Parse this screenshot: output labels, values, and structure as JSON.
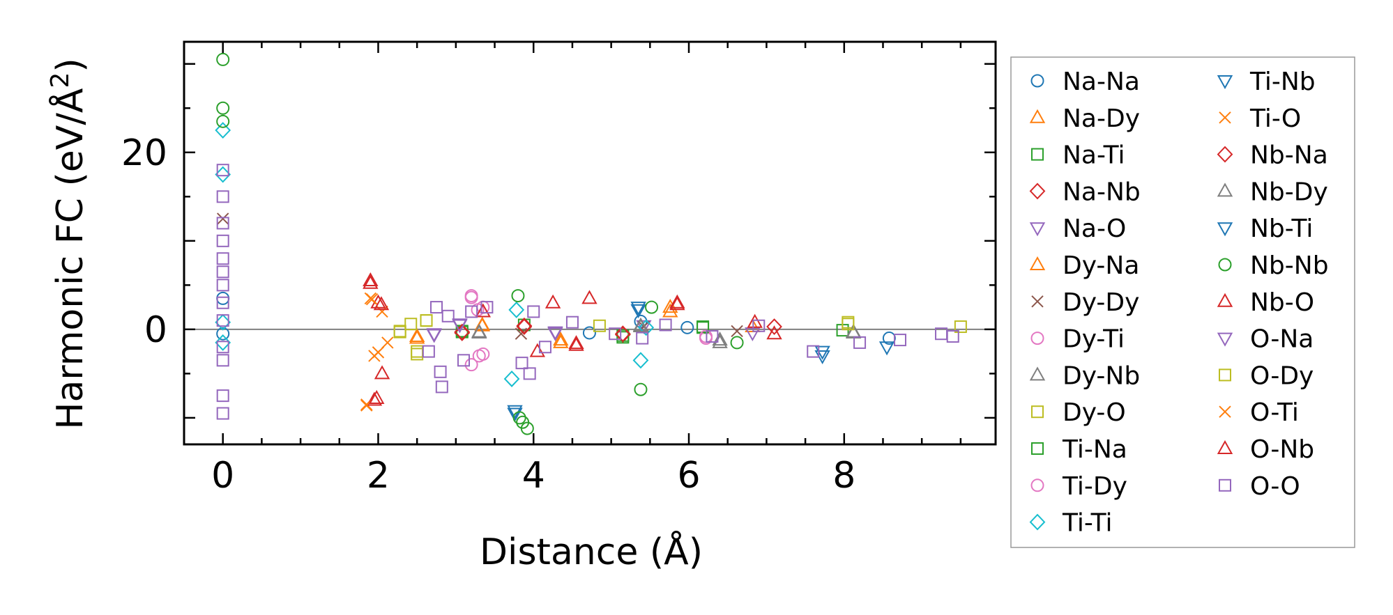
{
  "chart_data": {
    "type": "scatter",
    "xlabel": "Distance (Å)",
    "ylabel": "Harmonic FC (eV/Å",
    "ylabel_superscript": "2",
    "ylabel_close": ")",
    "xlim": [
      -0.5,
      9.95
    ],
    "ylim": [
      -13,
      32.5
    ],
    "xticks": [
      0,
      2,
      4,
      6,
      8
    ],
    "xtick_labels": [
      "0",
      "2",
      "4",
      "6",
      "8"
    ],
    "yticks": [
      0,
      20
    ],
    "ytick_labels": [
      "0",
      "20"
    ],
    "zero_line": true,
    "legend_position": "right",
    "series": [
      {
        "name": "Na-Na",
        "marker": "circle",
        "color": "#1f77b4",
        "points": [
          [
            0,
            -0.5
          ],
          [
            0,
            3.5
          ],
          [
            4.72,
            -0.4
          ],
          [
            5.38,
            0.9
          ],
          [
            5.98,
            0.2
          ],
          [
            8.58,
            -1.0
          ]
        ]
      },
      {
        "name": "Na-Dy",
        "marker": "triangle-up",
        "color": "#ff7f0e",
        "points": [
          [
            2.5,
            -1.0
          ],
          [
            3.34,
            0.5
          ],
          [
            4.35,
            -1.5
          ],
          [
            5.76,
            2.5
          ],
          [
            6.82,
            0.3
          ]
        ]
      },
      {
        "name": "Na-Ti",
        "marker": "square",
        "color": "#2ca02c",
        "points": [
          [
            3.08,
            -0.3
          ],
          [
            3.88,
            0.5
          ],
          [
            5.15,
            -0.9
          ],
          [
            6.18,
            0.2
          ],
          [
            7.98,
            -0.1
          ]
        ]
      },
      {
        "name": "Na-Nb",
        "marker": "diamond",
        "color": "#d62728",
        "points": [
          [
            3.08,
            -0.4
          ],
          [
            3.88,
            0.4
          ],
          [
            5.15,
            -0.6
          ],
          [
            7.1,
            0.3
          ]
        ]
      },
      {
        "name": "Na-O",
        "marker": "triangle-down",
        "color": "#9467bd",
        "points": [
          [
            2.72,
            -0.6
          ],
          [
            3.05,
            0.6
          ],
          [
            4.28,
            -0.3
          ],
          [
            5.42,
            0.4
          ],
          [
            6.82,
            -0.4
          ]
        ]
      },
      {
        "name": "Dy-Na",
        "marker": "triangle-up",
        "color": "#ff7f0e",
        "points": [
          [
            2.5,
            -0.8
          ],
          [
            3.34,
            0.4
          ],
          [
            4.35,
            -1.2
          ],
          [
            5.76,
            2.0
          ]
        ]
      },
      {
        "name": "Dy-Dy",
        "marker": "x",
        "color": "#8c564b",
        "points": [
          [
            0,
            12.5
          ],
          [
            3.84,
            -0.5
          ],
          [
            5.42,
            0.3
          ],
          [
            6.62,
            -0.2
          ]
        ]
      },
      {
        "name": "Dy-Ti",
        "marker": "circle",
        "color": "#e377c2",
        "points": [
          [
            3.2,
            3.8
          ],
          [
            3.3,
            -3.0
          ],
          [
            3.35,
            2.5
          ],
          [
            3.2,
            -4.0
          ],
          [
            6.22,
            -1.0
          ]
        ]
      },
      {
        "name": "Dy-Nb",
        "marker": "triangle-up",
        "color": "#7f7f7f",
        "points": [
          [
            3.3,
            -0.4
          ],
          [
            5.38,
            0.4
          ],
          [
            6.4,
            -1.2
          ],
          [
            8.12,
            -0.3
          ]
        ]
      },
      {
        "name": "Dy-O",
        "marker": "square",
        "color": "#bcbd22",
        "points": [
          [
            2.28,
            -0.3
          ],
          [
            2.42,
            0.6
          ],
          [
            2.5,
            -2.5
          ],
          [
            2.62,
            1.0
          ],
          [
            4.85,
            0.4
          ],
          [
            8.05,
            0.8
          ],
          [
            9.5,
            0.3
          ]
        ]
      },
      {
        "name": "Ti-Na",
        "marker": "square",
        "color": "#2ca02c",
        "points": [
          [
            3.08,
            -0.2
          ],
          [
            5.15,
            -0.7
          ],
          [
            6.18,
            0.3
          ]
        ]
      },
      {
        "name": "Ti-Dy",
        "marker": "circle",
        "color": "#e377c2",
        "points": [
          [
            3.2,
            3.6
          ],
          [
            3.35,
            -2.8
          ],
          [
            3.28,
            2.2
          ],
          [
            6.22,
            -0.8
          ]
        ]
      },
      {
        "name": "Ti-Ti",
        "marker": "diamond",
        "color": "#17becf",
        "points": [
          [
            0,
            22.5
          ],
          [
            0,
            17.5
          ],
          [
            0,
            0.8
          ],
          [
            0,
            -1.5
          ],
          [
            3.72,
            -5.6
          ],
          [
            3.78,
            2.2
          ],
          [
            5.38,
            -3.5
          ],
          [
            5.45,
            0.2
          ]
        ]
      },
      {
        "name": "Ti-Nb",
        "marker": "triangle-down",
        "color": "#1f77b4",
        "points": [
          [
            3.76,
            -9.5
          ],
          [
            5.35,
            2.5
          ],
          [
            7.72,
            -3.0
          ],
          [
            8.55,
            -2.0
          ]
        ]
      },
      {
        "name": "Ti-O",
        "marker": "x",
        "color": "#ff7f0e",
        "points": [
          [
            1.85,
            -8.5
          ],
          [
            1.9,
            3.5
          ],
          [
            1.95,
            -3.0
          ],
          [
            2.05,
            2.0
          ],
          [
            2.12,
            -1.5
          ]
        ]
      },
      {
        "name": "Nb-Na",
        "marker": "diamond",
        "color": "#d62728",
        "points": [
          [
            3.08,
            -0.3
          ],
          [
            3.88,
            0.3
          ],
          [
            5.15,
            -0.5
          ]
        ]
      },
      {
        "name": "Nb-Dy",
        "marker": "triangle-up",
        "color": "#7f7f7f",
        "points": [
          [
            3.3,
            -0.3
          ],
          [
            5.38,
            0.3
          ],
          [
            6.4,
            -1.5
          ],
          [
            8.12,
            -0.4
          ]
        ]
      },
      {
        "name": "Nb-Ti",
        "marker": "triangle-down",
        "color": "#1f77b4",
        "points": [
          [
            3.76,
            -9.2
          ],
          [
            5.35,
            2.2
          ],
          [
            7.72,
            -2.5
          ]
        ]
      },
      {
        "name": "Nb-Nb",
        "marker": "circle",
        "color": "#2ca02c",
        "points": [
          [
            0,
            30.5
          ],
          [
            0,
            25.0
          ],
          [
            0,
            23.5
          ],
          [
            3.8,
            3.8
          ],
          [
            3.82,
            -10.0
          ],
          [
            3.86,
            -10.5
          ],
          [
            3.92,
            -11.2
          ],
          [
            5.38,
            -6.8
          ],
          [
            5.52,
            2.5
          ],
          [
            6.62,
            -1.5
          ]
        ]
      },
      {
        "name": "Nb-O",
        "marker": "triangle-up",
        "color": "#d62728",
        "points": [
          [
            1.9,
            5.5
          ],
          [
            1.95,
            -8.0
          ],
          [
            2.0,
            3.0
          ],
          [
            2.05,
            -5.0
          ],
          [
            3.35,
            2.0
          ],
          [
            4.05,
            -2.5
          ],
          [
            4.25,
            3.0
          ],
          [
            4.55,
            -1.8
          ],
          [
            4.72,
            3.5
          ],
          [
            5.85,
            3.0
          ],
          [
            6.85,
            0.8
          ],
          [
            7.1,
            -0.5
          ]
        ]
      },
      {
        "name": "O-Na",
        "marker": "triangle-down",
        "color": "#9467bd",
        "points": [
          [
            2.72,
            -0.5
          ],
          [
            3.05,
            0.5
          ],
          [
            4.28,
            -0.4
          ]
        ]
      },
      {
        "name": "O-Dy",
        "marker": "square",
        "color": "#bcbd22",
        "points": [
          [
            2.28,
            -0.2
          ],
          [
            2.5,
            -2.8
          ],
          [
            2.62,
            1.0
          ],
          [
            8.05,
            0.6
          ]
        ]
      },
      {
        "name": "O-Ti",
        "marker": "x",
        "color": "#ff7f0e",
        "points": [
          [
            1.85,
            -8.6
          ],
          [
            1.92,
            3.4
          ],
          [
            2.0,
            -2.6
          ]
        ]
      },
      {
        "name": "O-Nb",
        "marker": "triangle-up",
        "color": "#d62728",
        "points": [
          [
            1.9,
            5.2
          ],
          [
            1.98,
            -7.8
          ],
          [
            2.04,
            2.8
          ],
          [
            4.55,
            -1.6
          ],
          [
            5.85,
            2.8
          ]
        ]
      },
      {
        "name": "O-O",
        "marker": "square",
        "color": "#9467bd",
        "points": [
          [
            0,
            18.0
          ],
          [
            0,
            15.0
          ],
          [
            0,
            12.0
          ],
          [
            0,
            10.0
          ],
          [
            0,
            8.0
          ],
          [
            0,
            6.5
          ],
          [
            0,
            5.0
          ],
          [
            0,
            3.0
          ],
          [
            0,
            1.0
          ],
          [
            0,
            -2.0
          ],
          [
            0,
            -3.5
          ],
          [
            0,
            -7.5
          ],
          [
            0,
            -9.5
          ],
          [
            2.65,
            -2.5
          ],
          [
            2.75,
            2.5
          ],
          [
            2.8,
            -4.8
          ],
          [
            2.82,
            -6.5
          ],
          [
            2.9,
            1.5
          ],
          [
            3.1,
            -3.5
          ],
          [
            3.2,
            2.0
          ],
          [
            3.4,
            2.5
          ],
          [
            3.85,
            -3.8
          ],
          [
            3.95,
            -5.0
          ],
          [
            4.0,
            2.0
          ],
          [
            4.15,
            -2.0
          ],
          [
            4.5,
            0.8
          ],
          [
            5.05,
            -0.5
          ],
          [
            5.4,
            -1.0
          ],
          [
            5.7,
            0.5
          ],
          [
            6.3,
            -0.8
          ],
          [
            6.9,
            0.4
          ],
          [
            7.6,
            -2.5
          ],
          [
            8.2,
            -1.5
          ],
          [
            8.72,
            -1.2
          ],
          [
            9.25,
            -0.5
          ],
          [
            9.4,
            -0.8
          ]
        ]
      }
    ]
  }
}
